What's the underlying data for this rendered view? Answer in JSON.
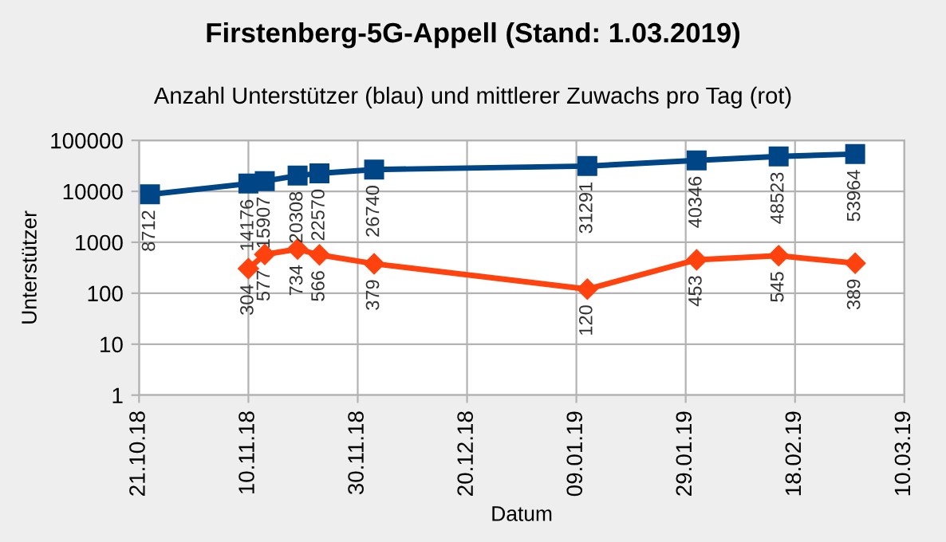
{
  "chart_data": {
    "type": "line",
    "title": "Firstenberg-5G-Appell (Stand: 1.03.2019)",
    "subtitle": "Anzahl Unterstützer (blau) und mittlerer Zuwachs pro Tag (rot)",
    "xlabel": "Datum",
    "ylabel": "Unterstützer",
    "x": [
      "2018-10-23",
      "2018-11-10",
      "2018-11-13",
      "2018-11-19",
      "2018-11-23",
      "2018-12-03",
      "2019-01-11",
      "2019-01-31",
      "2019-02-15",
      "2019-03-01"
    ],
    "series": [
      {
        "color": "#004586",
        "marker": "square",
        "values": [
          8712,
          14176,
          15907,
          20308,
          22570,
          26740,
          31291,
          40346,
          48523,
          53964
        ]
      },
      {
        "color": "#ff420e",
        "marker": "diamond",
        "values": [
          null,
          304,
          577,
          734,
          566,
          379,
          120,
          453,
          545,
          389
        ]
      }
    ],
    "log": true,
    "ylim": [
      1,
      100000
    ],
    "yticks": [
      1,
      10,
      100,
      1000,
      10000,
      100000
    ],
    "xlim": [
      "2018-10-21",
      "2019-03-10"
    ],
    "xticks": [
      {
        "value": "2018-10-21",
        "label": "21.10.18"
      },
      {
        "value": "2018-11-10",
        "label": "10.11.18"
      },
      {
        "value": "2018-11-30",
        "label": "30.11.18"
      },
      {
        "value": "2018-12-20",
        "label": "20.12.18"
      },
      {
        "value": "2019-01-09",
        "label": "09.01.19"
      },
      {
        "value": "2019-01-29",
        "label": "29.01.19"
      },
      {
        "value": "2019-02-18",
        "label": "18.02.19"
      },
      {
        "value": "2019-03-10",
        "label": "10.03.19"
      }
    ],
    "grid": true,
    "data_labels": true,
    "line_style": "solid"
  }
}
